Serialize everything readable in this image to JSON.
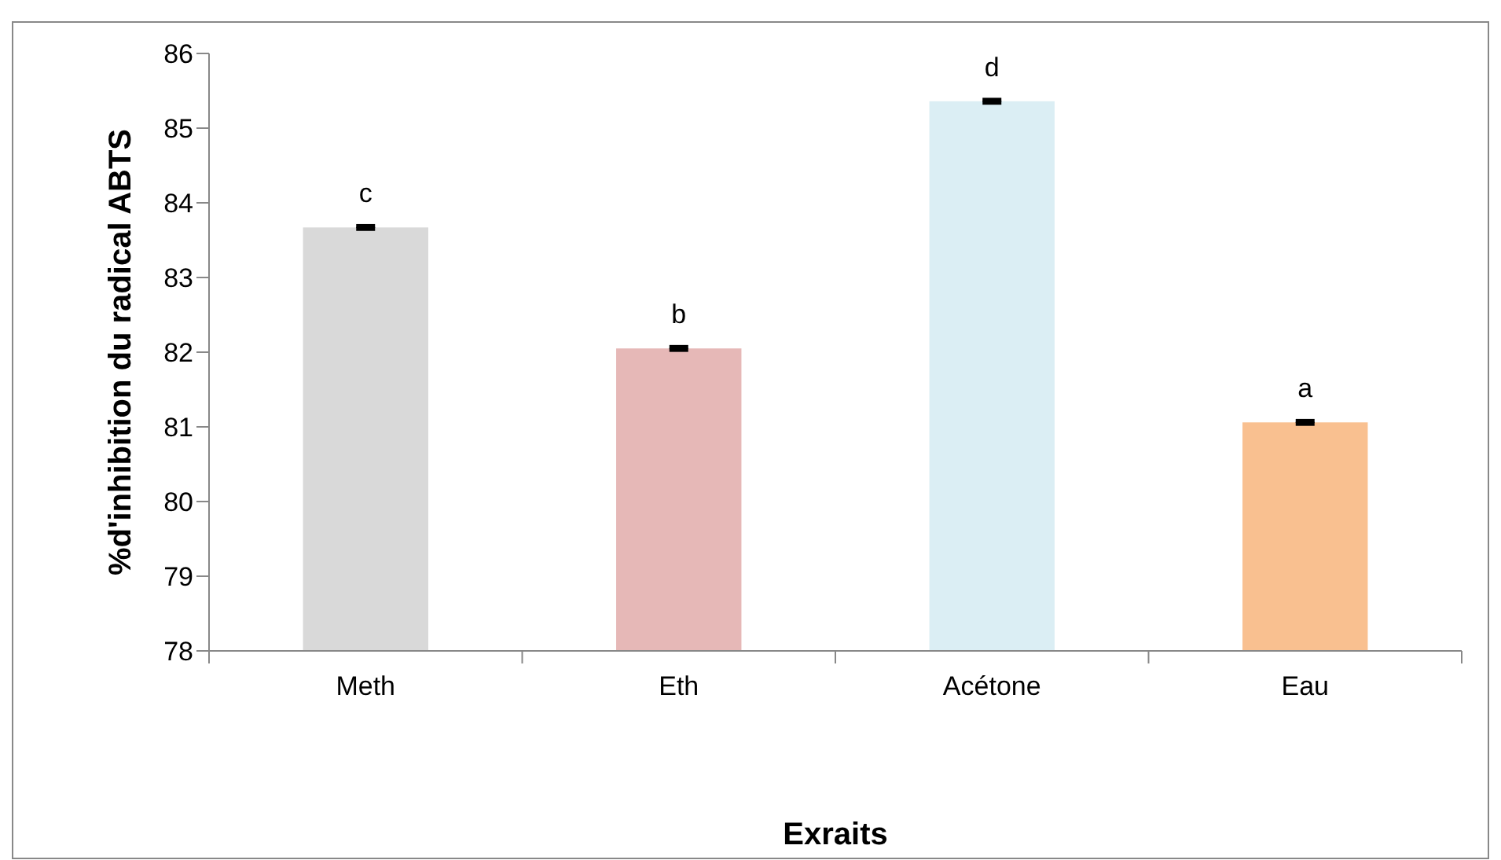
{
  "chart_data": {
    "type": "bar",
    "xlabel": "Exraits",
    "ylabel": "%d'inhibition du radical ABTS",
    "categories": [
      "Meth",
      "Eth",
      "Acétone",
      "Eau"
    ],
    "values": [
      83.67,
      82.05,
      85.36,
      81.06
    ],
    "colors": [
      "#d9d9d9",
      "#e6b8b7",
      "#dbeef4",
      "#f9c090"
    ],
    "errors": [
      0.02,
      0.02,
      0.02,
      0.02
    ],
    "ylim": [
      78,
      86
    ],
    "yticks": [
      78,
      79,
      80,
      81,
      82,
      83,
      84,
      85,
      86
    ],
    "annotations": [
      {
        "text": "c",
        "x": "Meth",
        "y": 83.67
      },
      {
        "text": "b",
        "x": "Eth",
        "y": 82.05
      },
      {
        "text": "d",
        "x": "Acétone",
        "y": 85.36
      },
      {
        "text": "a",
        "x": "Eau",
        "y": 81.06
      }
    ]
  }
}
